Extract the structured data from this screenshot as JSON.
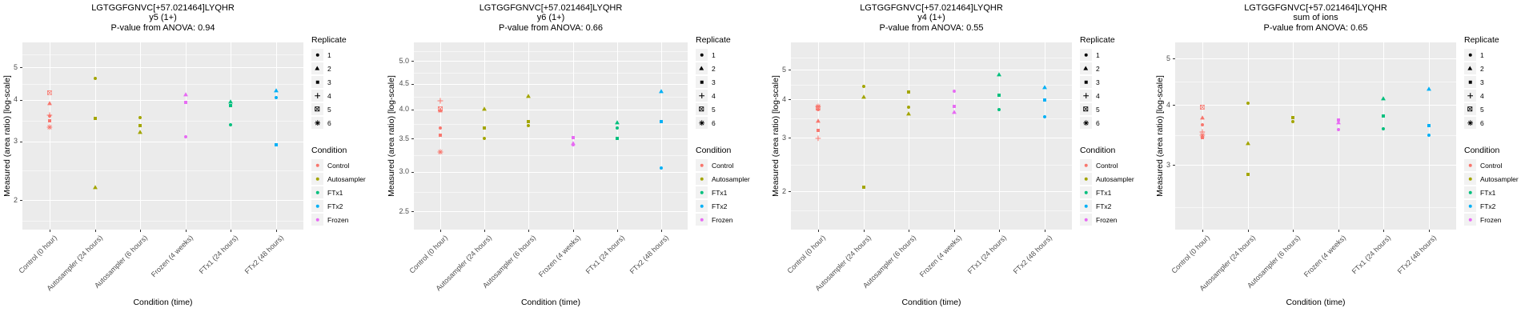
{
  "figure": {
    "y_axis_title": "Measured (area ratio) [log-scale]",
    "x_axis_title": "Condition (time)",
    "category_conditions": [
      "Control",
      "Autosampler",
      "Autosampler",
      "Frozen",
      "FTx1",
      "FTx2"
    ],
    "panel_bg": "#EBEBEB",
    "legend": {
      "replicate_title": "Replicate",
      "replicates": [
        {
          "label": "1",
          "shape": "circle"
        },
        {
          "label": "2",
          "shape": "triangle"
        },
        {
          "label": "3",
          "shape": "square"
        },
        {
          "label": "4",
          "shape": "plus"
        },
        {
          "label": "5",
          "shape": "square-cross"
        },
        {
          "label": "6",
          "shape": "asterisk"
        }
      ],
      "condition_title": "Condition",
      "conditions": [
        {
          "label": "Control",
          "color": "#F8766D"
        },
        {
          "label": "Autosampler",
          "color": "#A3A500"
        },
        {
          "label": "FTx1",
          "color": "#00BF7D"
        },
        {
          "label": "FTx2",
          "color": "#00B0F6"
        },
        {
          "label": "Frozen",
          "color": "#E76BF3"
        }
      ]
    }
  },
  "chart_data": [
    {
      "type": "scatter",
      "sequence": "LGTGGFGNVC[+57.021464]LYQHR",
      "fragment": "y5 (1+)",
      "p_value": 0.94,
      "title_lines": [
        "LGTGGFGNVC[+57.021464]LYQHR",
        "y5 (1+)",
        "P-value from ANOVA: 0.94"
      ],
      "xlabel": "Condition (time)",
      "ylabel": "Measured (area ratio) [log-scale]",
      "y_scale": "log10",
      "ylim": [
        1.63,
        5.95
      ],
      "yticks": [
        {
          "value": 2,
          "label": "2"
        },
        {
          "value": 3,
          "label": "3"
        },
        {
          "value": 4,
          "label": "4"
        },
        {
          "value": 5,
          "label": "5"
        }
      ],
      "yticks_minor": [
        1.73,
        2.45,
        3.46,
        4.47,
        5.48
      ],
      "categories": [
        "Control (0 hour)",
        "Autosampler (24 hours)",
        "Autosampler (6 hours)",
        "Frozen (4 weeks)",
        "FTx1 (24 hours)",
        "FTx2 (48 hours)"
      ],
      "points": [
        {
          "category": 0,
          "replicate": 5,
          "value": 4.21
        },
        {
          "category": 0,
          "replicate": 2,
          "value": 3.9
        },
        {
          "category": 0,
          "replicate": 4,
          "value": 3.59
        },
        {
          "category": 0,
          "replicate": 1,
          "value": 3.57
        },
        {
          "category": 0,
          "replicate": 3,
          "value": 3.46
        },
        {
          "category": 0,
          "replicate": 6,
          "value": 3.31
        },
        {
          "category": 1,
          "replicate": 1,
          "value": 4.64
        },
        {
          "category": 1,
          "replicate": 3,
          "value": 3.51
        },
        {
          "category": 1,
          "replicate": 2,
          "value": 2.19
        },
        {
          "category": 2,
          "replicate": 1,
          "value": 3.53
        },
        {
          "category": 2,
          "replicate": 3,
          "value": 3.34
        },
        {
          "category": 2,
          "replicate": 2,
          "value": 3.2
        },
        {
          "category": 3,
          "replicate": 2,
          "value": 4.16
        },
        {
          "category": 3,
          "replicate": 3,
          "value": 3.92
        },
        {
          "category": 3,
          "replicate": 1,
          "value": 3.09
        },
        {
          "category": 4,
          "replicate": 2,
          "value": 3.94
        },
        {
          "category": 4,
          "replicate": 3,
          "value": 3.84
        },
        {
          "category": 4,
          "replicate": 1,
          "value": 3.36
        },
        {
          "category": 5,
          "replicate": 2,
          "value": 4.28
        },
        {
          "category": 5,
          "replicate": 1,
          "value": 4.07
        },
        {
          "category": 5,
          "replicate": 3,
          "value": 2.93
        }
      ]
    },
    {
      "type": "scatter",
      "sequence": "LGTGGFGNVC[+57.021464]LYQHR",
      "fragment": "y6 (1+)",
      "p_value": 0.66,
      "title_lines": [
        "LGTGGFGNVC[+57.021464]LYQHR",
        "y6 (1+)",
        "P-value from ANOVA: 0.66"
      ],
      "xlabel": "Condition (time)",
      "ylabel": "Measured (area ratio) [log-scale]",
      "y_scale": "log10",
      "ylim": [
        2.3,
        5.45
      ],
      "yticks": [
        {
          "value": 2.5,
          "label": "2.5"
        },
        {
          "value": 3.0,
          "label": "3.0"
        },
        {
          "value": 3.5,
          "label": "3.5"
        },
        {
          "value": 4.0,
          "label": "4.0"
        },
        {
          "value": 4.5,
          "label": "4.5"
        },
        {
          "value": 5.0,
          "label": "5.0"
        }
      ],
      "yticks_minor": [
        2.74,
        3.24,
        3.74,
        4.24,
        4.74,
        5.24
      ],
      "categories": [
        "Control (0 hour)",
        "Autosampler (24 hours)",
        "Autosampler (6 hours)",
        "Frozen (4 weeks)",
        "FTx1 (24 hours)",
        "FTx2 (48 hours)"
      ],
      "points": [
        {
          "category": 0,
          "replicate": 4,
          "value": 4.16
        },
        {
          "category": 0,
          "replicate": 5,
          "value": 4.01
        },
        {
          "category": 0,
          "replicate": 2,
          "value": 3.98
        },
        {
          "category": 0,
          "replicate": 1,
          "value": 3.67
        },
        {
          "category": 0,
          "replicate": 3,
          "value": 3.56
        },
        {
          "category": 0,
          "replicate": 6,
          "value": 3.29
        },
        {
          "category": 1,
          "replicate": 2,
          "value": 4.02
        },
        {
          "category": 1,
          "replicate": 3,
          "value": 3.67
        },
        {
          "category": 1,
          "replicate": 1,
          "value": 3.5
        },
        {
          "category": 2,
          "replicate": 2,
          "value": 4.25
        },
        {
          "category": 2,
          "replicate": 3,
          "value": 3.79
        },
        {
          "category": 2,
          "replicate": 1,
          "value": 3.71
        },
        {
          "category": 3,
          "replicate": 3,
          "value": 3.52
        },
        {
          "category": 3,
          "replicate": 2,
          "value": 3.43
        },
        {
          "category": 3,
          "replicate": 1,
          "value": 3.4
        },
        {
          "category": 4,
          "replicate": 2,
          "value": 3.77
        },
        {
          "category": 4,
          "replicate": 1,
          "value": 3.67
        },
        {
          "category": 4,
          "replicate": 3,
          "value": 3.5
        },
        {
          "category": 5,
          "replicate": 2,
          "value": 4.35
        },
        {
          "category": 5,
          "replicate": 3,
          "value": 3.79
        },
        {
          "category": 5,
          "replicate": 1,
          "value": 3.05
        }
      ]
    },
    {
      "type": "scatter",
      "sequence": "LGTGGFGNVC[+57.021464]LYQHR",
      "fragment": "y4 (1+)",
      "p_value": 0.55,
      "title_lines": [
        "LGTGGFGNVC[+57.021464]LYQHR",
        "y4 (1+)",
        "P-value from ANOVA: 0.55"
      ],
      "xlabel": "Condition (time)",
      "ylabel": "Measured (area ratio) [log-scale]",
      "y_scale": "log10",
      "ylim": [
        1.5,
        6.15
      ],
      "yticks": [
        {
          "value": 2,
          "label": "2"
        },
        {
          "value": 3,
          "label": "3"
        },
        {
          "value": 4,
          "label": "4"
        },
        {
          "value": 5,
          "label": "5"
        }
      ],
      "yticks_minor": [
        1.73,
        2.45,
        3.46,
        4.47,
        5.48
      ],
      "categories": [
        "Control (0 hour)",
        "Autosampler (24 hours)",
        "Autosampler (6 hours)",
        "Frozen (4 weeks)",
        "FTx1 (24 hours)",
        "FTx2 (48 hours)"
      ],
      "points": [
        {
          "category": 0,
          "replicate": 6,
          "value": 3.8
        },
        {
          "category": 0,
          "replicate": 5,
          "value": 3.74
        },
        {
          "category": 0,
          "replicate": 1,
          "value": 3.7
        },
        {
          "category": 0,
          "replicate": 2,
          "value": 3.41
        },
        {
          "category": 0,
          "replicate": 3,
          "value": 3.17
        },
        {
          "category": 0,
          "replicate": 4,
          "value": 2.99
        },
        {
          "category": 1,
          "replicate": 1,
          "value": 4.41
        },
        {
          "category": 1,
          "replicate": 2,
          "value": 4.08
        },
        {
          "category": 1,
          "replicate": 3,
          "value": 2.06
        },
        {
          "category": 2,
          "replicate": 3,
          "value": 4.23
        },
        {
          "category": 2,
          "replicate": 1,
          "value": 3.78
        },
        {
          "category": 2,
          "replicate": 2,
          "value": 3.59
        },
        {
          "category": 3,
          "replicate": 1,
          "value": 4.26
        },
        {
          "category": 3,
          "replicate": 3,
          "value": 3.8
        },
        {
          "category": 3,
          "replicate": 2,
          "value": 3.63
        },
        {
          "category": 4,
          "replicate": 2,
          "value": 4.82
        },
        {
          "category": 4,
          "replicate": 3,
          "value": 4.13
        },
        {
          "category": 4,
          "replicate": 1,
          "value": 3.7
        },
        {
          "category": 5,
          "replicate": 2,
          "value": 4.38
        },
        {
          "category": 5,
          "replicate": 3,
          "value": 3.99
        },
        {
          "category": 5,
          "replicate": 1,
          "value": 3.5
        }
      ]
    },
    {
      "type": "scatter",
      "sequence": "LGTGGFGNVC[+57.021464]LYQHR",
      "fragment": "sum of ions",
      "p_value": 0.65,
      "title_lines": [
        "LGTGGFGNVC[+57.021464]LYQHR",
        "sum of ions",
        "P-value from ANOVA: 0.65"
      ],
      "xlabel": "Condition (time)",
      "ylabel": "Measured (area ratio) [log-scale]",
      "y_scale": "log10",
      "ylim": [
        2.2,
        5.4
      ],
      "yticks": [
        {
          "value": 3,
          "label": "3"
        },
        {
          "value": 4,
          "label": "4"
        },
        {
          "value": 5,
          "label": "5"
        }
      ],
      "yticks_minor": [
        2.45,
        3.46,
        4.47
      ],
      "categories": [
        "Control (0 hour)",
        "Autosampler (24 hours)",
        "Autosampler (6 hours)",
        "Frozen (4 weeks)",
        "FTx1 (24 hours)",
        "FTx2 (48 hours)"
      ],
      "points": [
        {
          "category": 0,
          "replicate": 5,
          "value": 3.95
        },
        {
          "category": 0,
          "replicate": 2,
          "value": 3.76
        },
        {
          "category": 0,
          "replicate": 1,
          "value": 3.63
        },
        {
          "category": 0,
          "replicate": 4,
          "value": 3.51
        },
        {
          "category": 0,
          "replicate": 6,
          "value": 3.46
        },
        {
          "category": 0,
          "replicate": 3,
          "value": 3.42
        },
        {
          "category": 1,
          "replicate": 1,
          "value": 4.04
        },
        {
          "category": 1,
          "replicate": 2,
          "value": 3.33
        },
        {
          "category": 1,
          "replicate": 3,
          "value": 2.87
        },
        {
          "category": 2,
          "replicate": 3,
          "value": 3.77
        },
        {
          "category": 2,
          "replicate": 1,
          "value": 3.69
        },
        {
          "category": 3,
          "replicate": 3,
          "value": 3.72
        },
        {
          "category": 3,
          "replicate": 2,
          "value": 3.68
        },
        {
          "category": 3,
          "replicate": 1,
          "value": 3.56
        },
        {
          "category": 4,
          "replicate": 2,
          "value": 4.13
        },
        {
          "category": 4,
          "replicate": 3,
          "value": 3.79
        },
        {
          "category": 4,
          "replicate": 1,
          "value": 3.57
        },
        {
          "category": 5,
          "replicate": 2,
          "value": 4.33
        },
        {
          "category": 5,
          "replicate": 3,
          "value": 3.62
        },
        {
          "category": 5,
          "replicate": 1,
          "value": 3.46
        }
      ]
    }
  ]
}
